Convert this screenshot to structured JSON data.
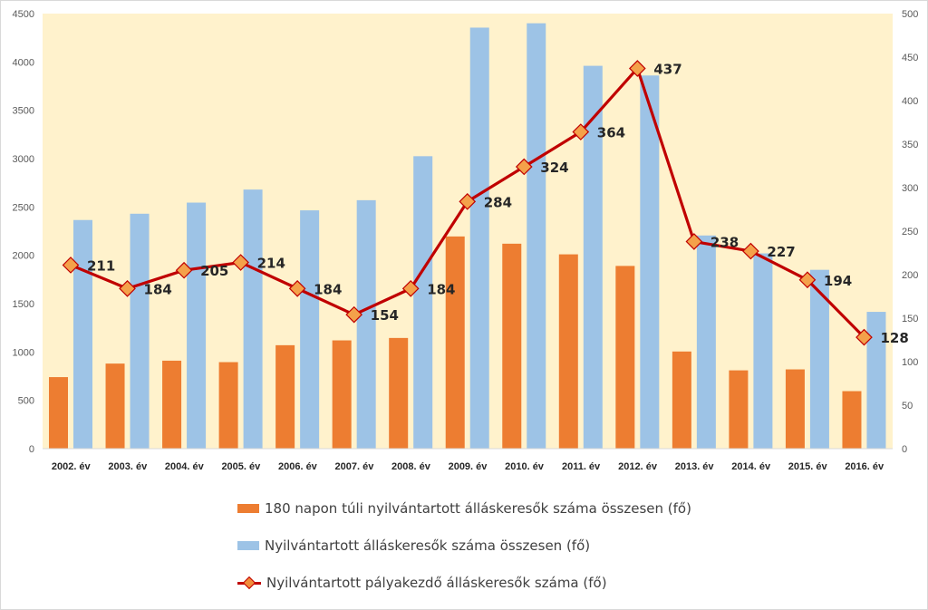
{
  "colors": {
    "plot_background": "#fff2cc",
    "bar_180": "#ed7d31",
    "bar_total": "#9dc3e6",
    "line": "#c00000",
    "marker_fill": "#f4a14a"
  },
  "chart_data": {
    "type": "bar",
    "categories": [
      "2002. év",
      "2003. év",
      "2004. év",
      "2005. év",
      "2006. év",
      "2007. év",
      "2008. év",
      "2009. év",
      "2010. év",
      "2011. év",
      "2012. év",
      "2013. év",
      "2014. év",
      "2015. év",
      "2016. év"
    ],
    "y_left": {
      "ylim": [
        0,
        4500
      ],
      "ticks": [
        0,
        500,
        1000,
        1500,
        2000,
        2500,
        3000,
        3500,
        4000,
        4500
      ]
    },
    "y_right": {
      "ylim": [
        0,
        500
      ],
      "ticks": [
        0,
        50,
        100,
        150,
        200,
        250,
        300,
        350,
        400,
        450,
        500
      ]
    },
    "grid": false,
    "legend_position": "bottom",
    "series": [
      {
        "name": "180 napon túli nyilvántartott álláskeresők száma összesen (fő)",
        "type": "bar",
        "axis": "left",
        "values": [
          740,
          880,
          910,
          895,
          1070,
          1120,
          1145,
          2195,
          2120,
          2010,
          1890,
          1005,
          810,
          820,
          595
        ]
      },
      {
        "name": "Nyilvántartott álláskeresők száma összesen (fő)",
        "type": "bar",
        "axis": "left",
        "values": [
          2365,
          2430,
          2545,
          2680,
          2465,
          2570,
          3025,
          4355,
          4400,
          3960,
          3860,
          2205,
          2020,
          1850,
          1415
        ]
      },
      {
        "name": "Nyilvántartott pályakezdő álláskeresők száma (fő)",
        "type": "line",
        "axis": "right",
        "values": [
          211,
          184,
          205,
          214,
          184,
          154,
          184,
          284,
          324,
          364,
          437,
          238,
          227,
          194,
          128
        ],
        "data_labels": [
          "211",
          "184",
          "205",
          "214",
          "184",
          "154",
          "184",
          "284",
          "324",
          "364",
          "437",
          "238",
          "227",
          "194",
          "128"
        ]
      }
    ]
  }
}
